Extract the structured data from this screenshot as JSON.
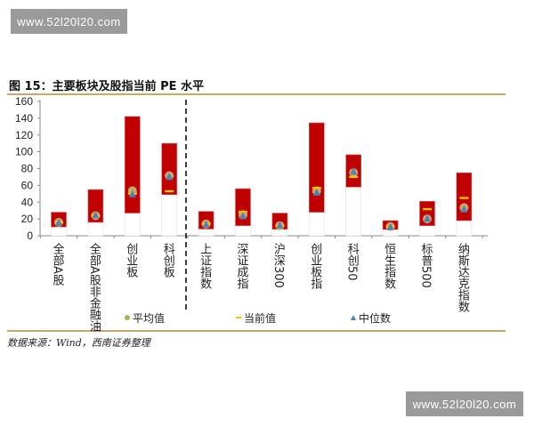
{
  "watermark": "www.52l20l20.com",
  "title": "图 15：主要板块及股指当前 PE 水平",
  "source": "数据来源：Wind，西南证券整理",
  "colors": {
    "range": "#c00000",
    "average": "#c8a86a",
    "average_legend": "#9bbb59",
    "current": "#ffc000",
    "median": "#4f81bd"
  },
  "chart_data": {
    "type": "bar",
    "title": "",
    "ylim": [
      0,
      160
    ],
    "yticks": [
      0,
      20,
      40,
      60,
      80,
      100,
      120,
      140,
      160
    ],
    "grid": false,
    "legend_position": "bottom",
    "categories": [
      "全部A股",
      "全部A股非金融油",
      "创业板",
      "科创板",
      "上证指数",
      "深证成指",
      "沪深300",
      "创业板指",
      "科创50",
      "恒生指数",
      "标普500",
      "纳斯达克指数"
    ],
    "range_low": [
      10.5,
      16,
      27,
      49,
      8,
      12,
      7.7,
      28,
      58,
      7.5,
      12,
      18
    ],
    "range_high": [
      28,
      55,
      142,
      110,
      29,
      56,
      27,
      134.5,
      96.5,
      18,
      41,
      75
    ],
    "series": [
      {
        "name": "平均值",
        "values": [
          16,
          24,
          53.5,
          71.5,
          14,
          25,
          12,
          53.5,
          75,
          11,
          20,
          33.5
        ]
      },
      {
        "name": "当前值",
        "values": [
          16,
          24,
          50,
          53,
          14,
          28.5,
          12,
          57,
          70,
          11,
          31.7,
          45
        ]
      },
      {
        "name": "中位数",
        "values": [
          15,
          24,
          49,
          70,
          13,
          23,
          12,
          51,
          76,
          10,
          20,
          31
        ]
      }
    ]
  }
}
